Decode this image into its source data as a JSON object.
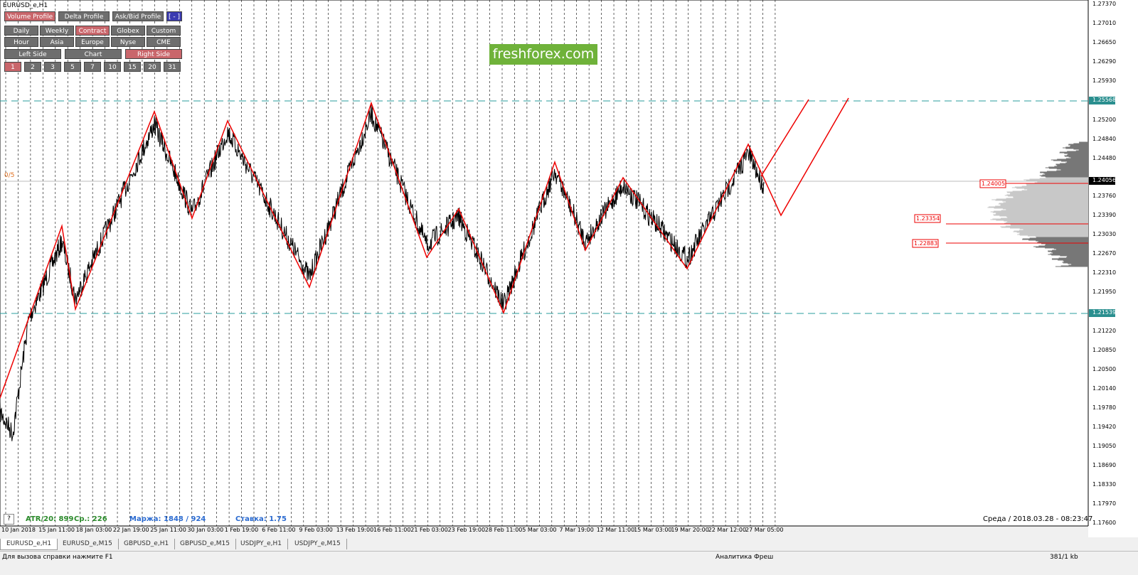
{
  "window": {
    "title": "EURUSD_e,H1"
  },
  "toolbar": {
    "profiles": [
      "Volume Profile",
      "Delta Profile",
      "Ask/Bid Profile",
      "[ - ]"
    ],
    "sessions": [
      "Daily",
      "Weekly",
      "Contract",
      "Globex",
      "Custom"
    ],
    "markets": [
      "Hour",
      "Asia",
      "Europe",
      "Nyse",
      "CME"
    ],
    "sides": [
      "Left Side",
      "Chart",
      "Right Side"
    ],
    "counts": [
      "1",
      "2",
      "3",
      "5",
      "7",
      "10",
      "15",
      "20",
      "31"
    ]
  },
  "logo": "freshforex.com",
  "marker": "0/5",
  "price_axis": {
    "labels": [
      "1.27370",
      "1.27010",
      "1.26650",
      "1.26290",
      "1.25930",
      "1.25568",
      "1.25200",
      "1.24840",
      "1.24480",
      "1.24056",
      "1.23760",
      "1.23390",
      "1.23030",
      "1.22670",
      "1.22310",
      "1.21950",
      "1.21539",
      "1.21220",
      "1.20850",
      "1.20500",
      "1.20140",
      "1.19780",
      "1.19420",
      "1.19050",
      "1.18690",
      "1.18330",
      "1.17970",
      "1.17600"
    ]
  },
  "level_labels": [
    "1.24005",
    "1.23354",
    "1.22883"
  ],
  "time_axis": {
    "labels": [
      "10 Jan 2018",
      "15 Jan 11:00",
      "18 Jan 03:00",
      "22 Jan 19:00",
      "25 Jan 11:00",
      "30 Jan 03:00",
      "1 Feb 19:00",
      "6 Feb 11:00",
      "9 Feb 03:00",
      "13 Feb 19:00",
      "16 Feb 11:00",
      "21 Feb 03:00",
      "23 Feb 19:00",
      "28 Feb 11:00",
      "5 Mar 03:00",
      "7 Mar 19:00",
      "12 Mar 11:00",
      "15 Mar 03:00",
      "19 Mar 20:00",
      "22 Mar 12:00",
      "27 Mar 05:00"
    ]
  },
  "info": {
    "help": "?",
    "atr": "ATR/20: 899",
    "avg": "Ср.: 226",
    "margin": "Маржа: 1848 / 924",
    "rate": "Ставка: 1.75",
    "datetime": "Среда / 2018.03.28 - 08:23:47"
  },
  "tabs": [
    "EURUSD_e,H1",
    "EURUSD_e,M15",
    "GBPUSD_e,H1",
    "GBPUSD_e,M15",
    "USDJPY_e,H1",
    "USDJPY_e,M15"
  ],
  "status": {
    "help": "Для вызова справки нажмите F1",
    "profile": "Аналитика Фреш",
    "traffic": "381/1 kb"
  }
}
